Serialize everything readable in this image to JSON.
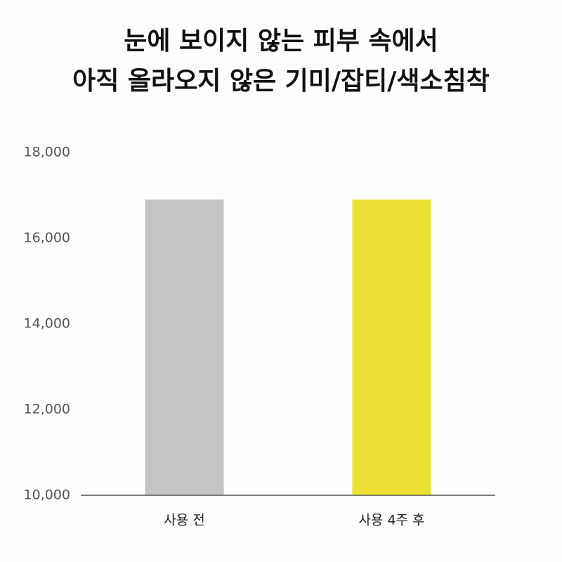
{
  "chart_data": {
    "type": "bar",
    "title": [
      "눈에 보이지 않는 피부 속에서",
      "아직 올라오지 않은 기미/잡티/색소침착"
    ],
    "categories": [
      "사용 전",
      "사용 4주 후"
    ],
    "values": [
      16900,
      16900
    ],
    "colors": [
      "#c4c4c4",
      "#ede035"
    ],
    "ylim": [
      10000,
      18000
    ],
    "yticks": [
      {
        "value": 10000,
        "label": "10,000"
      },
      {
        "value": 12000,
        "label": "12,000"
      },
      {
        "value": 14000,
        "label": "14,000"
      },
      {
        "value": 16000,
        "label": "16,000"
      },
      {
        "value": 18000,
        "label": "18,000"
      }
    ],
    "grid": false
  }
}
